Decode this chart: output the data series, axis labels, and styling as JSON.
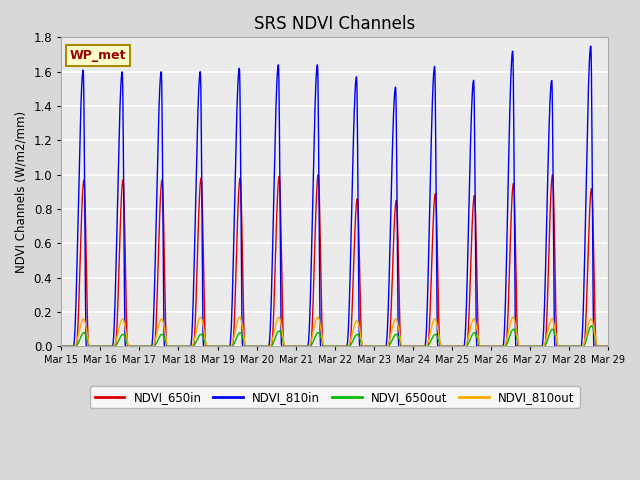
{
  "title": "SRS NDVI Channels",
  "ylabel": "NDVI Channels (W/m2/mm)",
  "annotation": "WP_met",
  "ylim": [
    0.0,
    1.8
  ],
  "yticks": [
    0.0,
    0.2,
    0.4,
    0.6,
    0.8,
    1.0,
    1.2,
    1.4,
    1.6,
    1.8
  ],
  "xtick_labels": [
    "Mar 15",
    "Mar 16",
    "Mar 17",
    "Mar 18",
    "Mar 19",
    "Mar 20",
    "Mar 21",
    "Mar 22",
    "Mar 23",
    "Mar 24",
    "Mar 25",
    "Mar 26",
    "Mar 27",
    "Mar 28",
    "Mar 29"
  ],
  "colors": {
    "NDVI_650in": "#dd0000",
    "NDVI_810in": "#0000ee",
    "NDVI_650out": "#00bb00",
    "NDVI_810out": "#ffaa00"
  },
  "fig_bg_color": "#d8d8d8",
  "plot_bg_color": "#ebebeb",
  "title_fontsize": 12,
  "annotation_bg": "#ffffcc",
  "annotation_edge": "#aa8800",
  "n_days": 14,
  "ndvi_650in_peaks": [
    0.97,
    0.97,
    0.97,
    0.98,
    0.98,
    0.99,
    1.0,
    0.86,
    0.85,
    0.89,
    0.88,
    0.95,
    1.0,
    0.92
  ],
  "ndvi_810in_peaks": [
    1.61,
    1.6,
    1.6,
    1.6,
    1.62,
    1.64,
    1.64,
    1.57,
    1.51,
    1.63,
    1.55,
    1.72,
    1.55,
    1.75
  ],
  "ndvi_650out_peaks": [
    0.08,
    0.07,
    0.07,
    0.07,
    0.08,
    0.09,
    0.08,
    0.07,
    0.07,
    0.07,
    0.08,
    0.1,
    0.1,
    0.12
  ],
  "ndvi_810out_peaks": [
    0.16,
    0.16,
    0.16,
    0.17,
    0.17,
    0.17,
    0.17,
    0.15,
    0.16,
    0.16,
    0.16,
    0.17,
    0.16,
    0.16
  ]
}
